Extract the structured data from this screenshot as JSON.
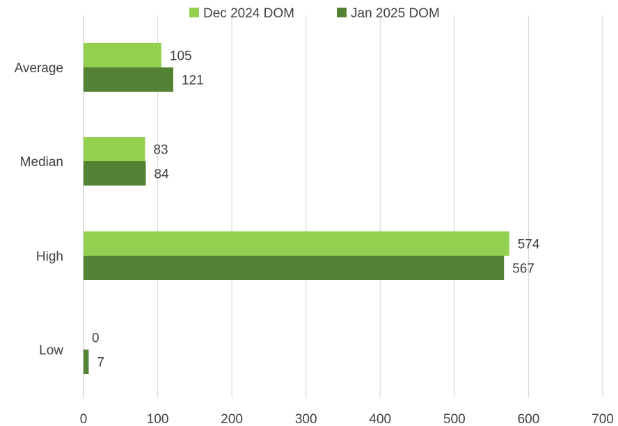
{
  "chart_data": {
    "type": "bar",
    "orientation": "horizontal",
    "categories": [
      "Average",
      "Median",
      "High",
      "Low"
    ],
    "series": [
      {
        "name": "Dec 2024 DOM",
        "color": "#92d050",
        "values": [
          105,
          83,
          574,
          0
        ]
      },
      {
        "name": "Jan 2025 DOM",
        "color": "#548235",
        "values": [
          121,
          84,
          567,
          7
        ]
      }
    ],
    "xlim": [
      0,
      700
    ],
    "x_ticks": [
      0,
      100,
      200,
      300,
      400,
      500,
      600,
      700
    ],
    "grid": true,
    "legend_position": "top"
  }
}
